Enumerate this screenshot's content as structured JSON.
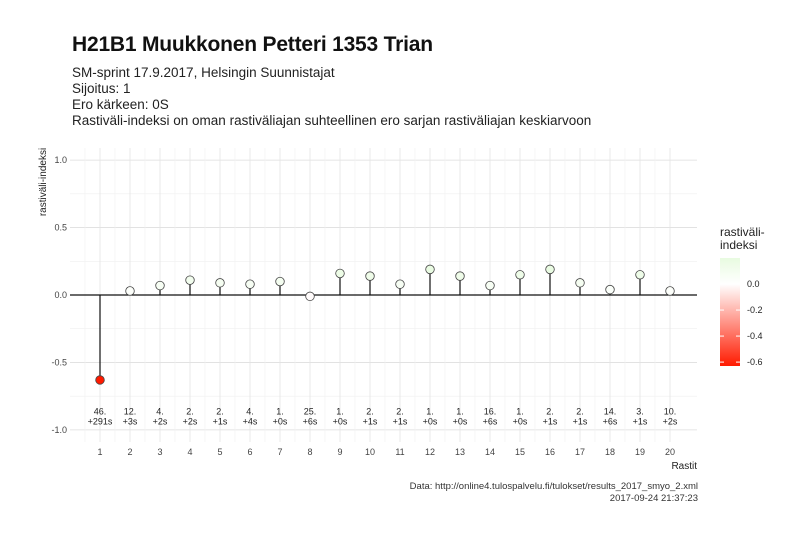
{
  "title": "H21B1 Muukkonen Petteri 1353 Trian",
  "subtitle_lines": [
    "SM-sprint 17.9.2017, Helsingin Suunnistajat",
    "Sijoitus: 1",
    "Ero kärkeen: 0S",
    "Rastiväli-indeksi on oman rastiväliajan suhteellinen ero sarjan rastiväliajan keskiarvoon"
  ],
  "caption_lines": [
    "Data: http://online4.tulospalvelu.fi/tulokset/results_2017_smyo_2.xml",
    "2017-09-24 21:37:23"
  ],
  "legend": {
    "title_lines": [
      "rastiväli-",
      "indeksi"
    ],
    "ticks": [
      0.0,
      -0.2,
      -0.4,
      -0.6
    ],
    "tick_labels": [
      "0.0",
      "-0.2",
      "-0.4",
      "-0.6"
    ],
    "range": [
      -0.63,
      0.2
    ],
    "colors": {
      "high": "#e8fbe0",
      "mid": "#ffffff",
      "low": "#ff1a00"
    }
  },
  "chart_data": {
    "type": "scatter",
    "style": "lollipop",
    "title": "H21B1 Muukkonen Petteri 1353 Trian",
    "xlabel": "Rastit",
    "ylabel": "rastiväli-indeksi",
    "ylim": [
      -1.0,
      1.0
    ],
    "yticks": [
      -1.0,
      -0.5,
      0.0,
      0.5,
      1.0
    ],
    "ytick_labels": [
      "-1.0",
      "-0.5",
      "0.0",
      "0.5",
      "1.0"
    ],
    "grid": true,
    "x": [
      1,
      2,
      3,
      4,
      5,
      6,
      7,
      8,
      9,
      10,
      11,
      12,
      13,
      14,
      15,
      16,
      17,
      18,
      19,
      20
    ],
    "y": [
      -0.63,
      0.03,
      0.07,
      0.11,
      0.09,
      0.08,
      0.1,
      -0.01,
      0.16,
      0.14,
      0.08,
      0.19,
      0.14,
      0.07,
      0.15,
      0.19,
      0.09,
      0.04,
      0.15,
      0.03
    ],
    "point_labels": [
      [
        "46.",
        "+291s"
      ],
      [
        "12.",
        "+3s"
      ],
      [
        "4.",
        "+2s"
      ],
      [
        "2.",
        "+2s"
      ],
      [
        "2.",
        "+1s"
      ],
      [
        "4.",
        "+4s"
      ],
      [
        "1.",
        "+0s"
      ],
      [
        "25.",
        "+6s"
      ],
      [
        "1.",
        "+0s"
      ],
      [
        "2.",
        "+1s"
      ],
      [
        "2.",
        "+1s"
      ],
      [
        "1.",
        "+0s"
      ],
      [
        "1.",
        "+0s"
      ],
      [
        "16.",
        "+6s"
      ],
      [
        "1.",
        "+0s"
      ],
      [
        "2.",
        "+1s"
      ],
      [
        "2.",
        "+1s"
      ],
      [
        "14.",
        "+6s"
      ],
      [
        "3.",
        "+1s"
      ],
      [
        "10.",
        "+2s"
      ]
    ],
    "label_y": -0.91
  }
}
